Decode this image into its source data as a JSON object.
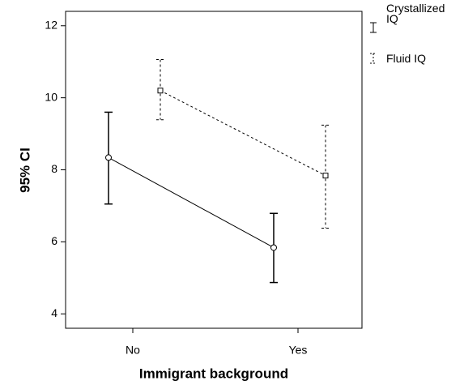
{
  "chart_data": {
    "type": "errorbar",
    "x_label": "Immigrant background",
    "y_label": "95% CI",
    "categories": [
      "No",
      "Yes"
    ],
    "series": [
      {
        "name": "Crystallized IQ",
        "color": "#000000",
        "dash": false,
        "marker": "circle",
        "values": [
          8.34,
          5.84
        ],
        "lower": [
          7.05,
          4.87
        ],
        "upper": [
          9.6,
          6.79
        ]
      },
      {
        "name": "Fluid IQ",
        "color": "#000000",
        "dash": true,
        "marker": "square",
        "values": [
          10.2,
          7.84
        ],
        "lower": [
          9.39,
          6.38
        ],
        "upper": [
          11.06,
          9.24
        ]
      }
    ],
    "ylim": [
      3.6,
      12.4
    ],
    "yticks": [
      4,
      6,
      8,
      10,
      12
    ],
    "grid": false
  }
}
